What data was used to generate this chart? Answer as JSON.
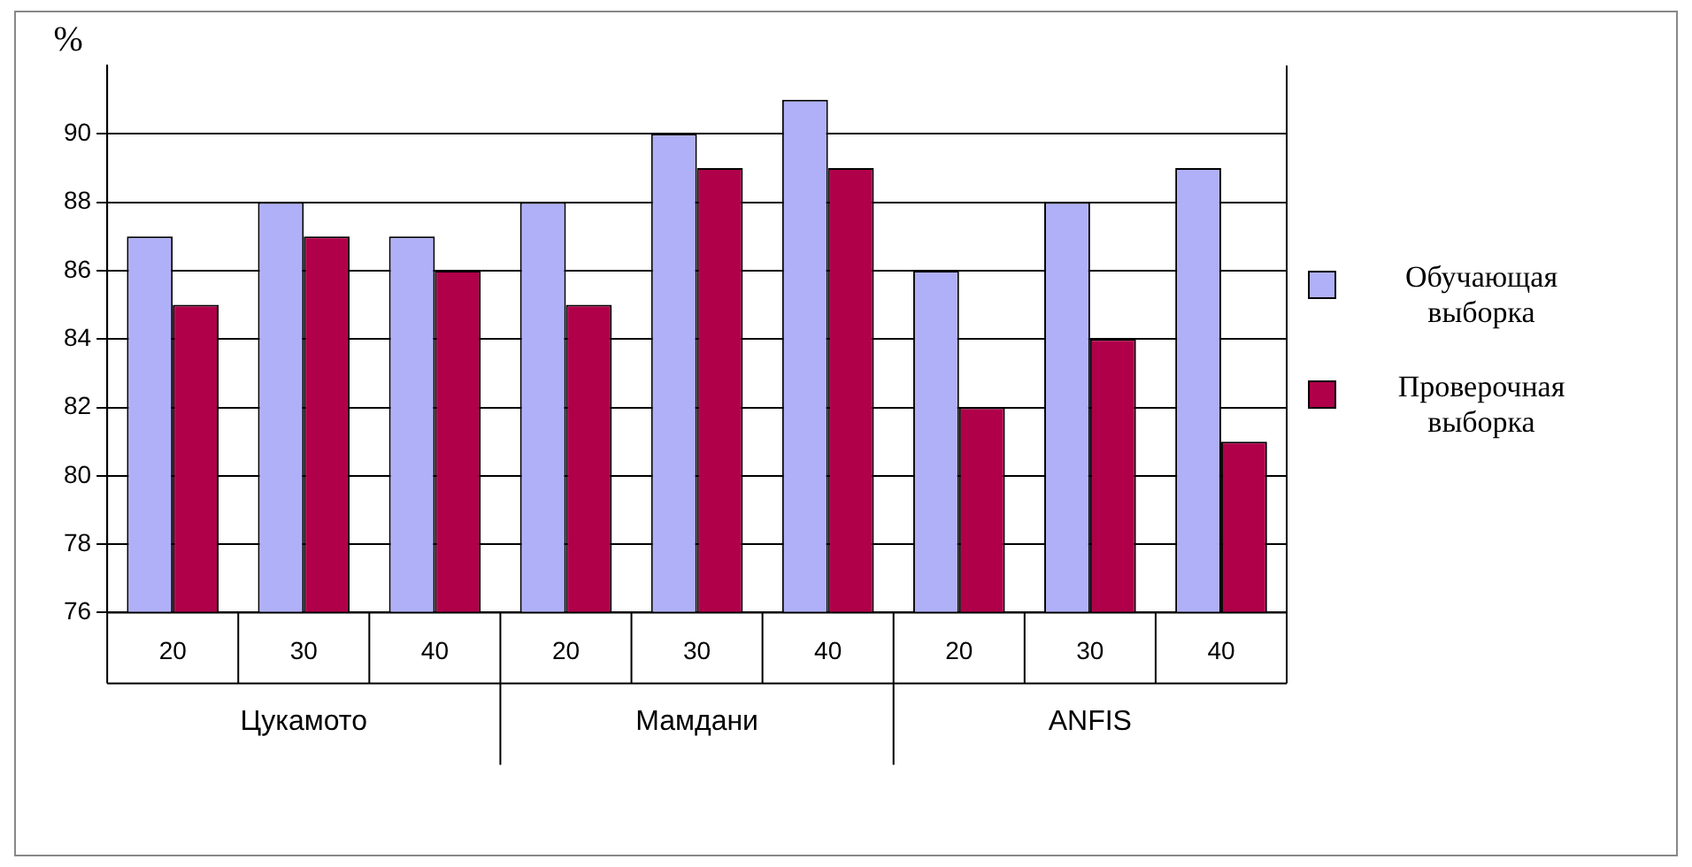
{
  "chart_data": {
    "type": "bar",
    "ylabel": "%",
    "categories": [
      "20",
      "30",
      "40",
      "20",
      "30",
      "40",
      "20",
      "30",
      "40"
    ],
    "annotations": [
      "Цукамото",
      "Мамдани",
      "ANFIS"
    ],
    "series": [
      {
        "name": "Обучающая выборка",
        "color": "#b0b0f8",
        "values": [
          87,
          88,
          87,
          88,
          90,
          91,
          86,
          88,
          89
        ]
      },
      {
        "name": "Проверочная выборка",
        "color": "#b0004a",
        "values": [
          85,
          87,
          86,
          85,
          89,
          89,
          82,
          84,
          81
        ]
      }
    ],
    "ylim": [
      76,
      92
    ],
    "yticks": [
      76,
      78,
      80,
      82,
      84,
      86,
      88,
      90
    ],
    "grid": "y",
    "legend": "right"
  }
}
